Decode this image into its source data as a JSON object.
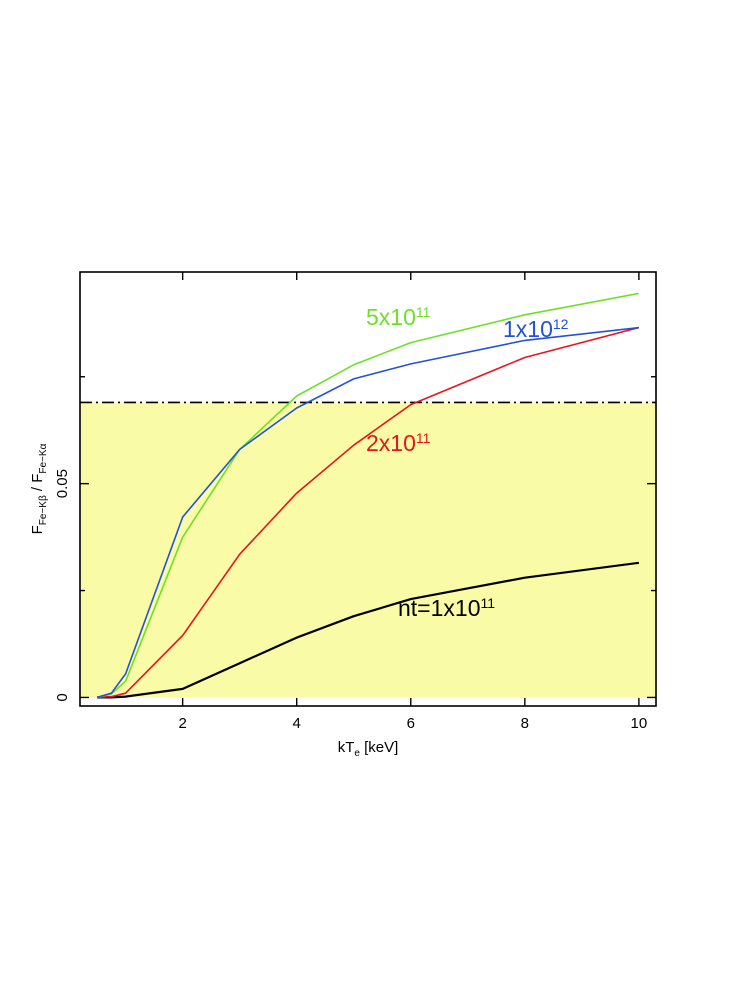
{
  "chart_data": {
    "type": "line",
    "xlabel": {
      "main": "kT",
      "sub": "e",
      "tail": " [keV]"
    },
    "ylabel": {
      "f1": "F",
      "s1": "Fe−Kβ",
      "mid": " / F",
      "s2": "Fe−Kα"
    },
    "xlim": [
      0.2,
      10.3
    ],
    "ylim": [
      -0.002,
      0.0995
    ],
    "x_ticks": [
      2,
      4,
      6,
      8,
      10
    ],
    "x_tick_labels": [
      "2",
      "4",
      "6",
      "8",
      "10"
    ],
    "y_ticks": [
      0,
      0.05
    ],
    "y_tick_labels": [
      "0",
      "0.05"
    ],
    "y_minor_ticks": [
      0.025,
      0.075
    ],
    "shaded_region": {
      "y_from": 0,
      "y_to": 0.069,
      "color": "#fafba6"
    },
    "reference_line": {
      "y": 0.069,
      "style": "dash-dot",
      "color": "#000000"
    },
    "series": [
      {
        "name": "nt=1x10",
        "exponent": "11",
        "color": "#000000",
        "x": [
          0.5,
          0.75,
          1,
          2,
          3,
          4,
          5,
          6,
          8,
          10
        ],
        "y": [
          0,
          0,
          0.0002,
          0.002,
          0.008,
          0.014,
          0.019,
          0.023,
          0.028,
          0.0315
        ]
      },
      {
        "name": "2x10",
        "exponent": "11",
        "color": "#e8141b",
        "x": [
          0.5,
          0.75,
          1,
          2,
          3,
          4,
          5,
          6,
          8,
          10
        ],
        "y": [
          0,
          0.0002,
          0.001,
          0.0145,
          0.0335,
          0.0478,
          0.059,
          0.0685,
          0.0795,
          0.0865
        ]
      },
      {
        "name": "5x10",
        "exponent": "11",
        "color": "#6fe02a",
        "x": [
          0.5,
          0.75,
          1,
          2,
          3,
          4,
          5,
          6,
          8,
          10
        ],
        "y": [
          0,
          0.0008,
          0.0038,
          0.0375,
          0.058,
          0.0705,
          0.0778,
          0.083,
          0.0895,
          0.0945
        ]
      },
      {
        "name": "1x10",
        "exponent": "12",
        "color": "#2451d6",
        "x": [
          0.5,
          0.75,
          1,
          2,
          3,
          4,
          5,
          6,
          8,
          10
        ],
        "y": [
          0,
          0.001,
          0.0055,
          0.0422,
          0.058,
          0.0677,
          0.0745,
          0.078,
          0.0835,
          0.0865
        ]
      }
    ]
  }
}
